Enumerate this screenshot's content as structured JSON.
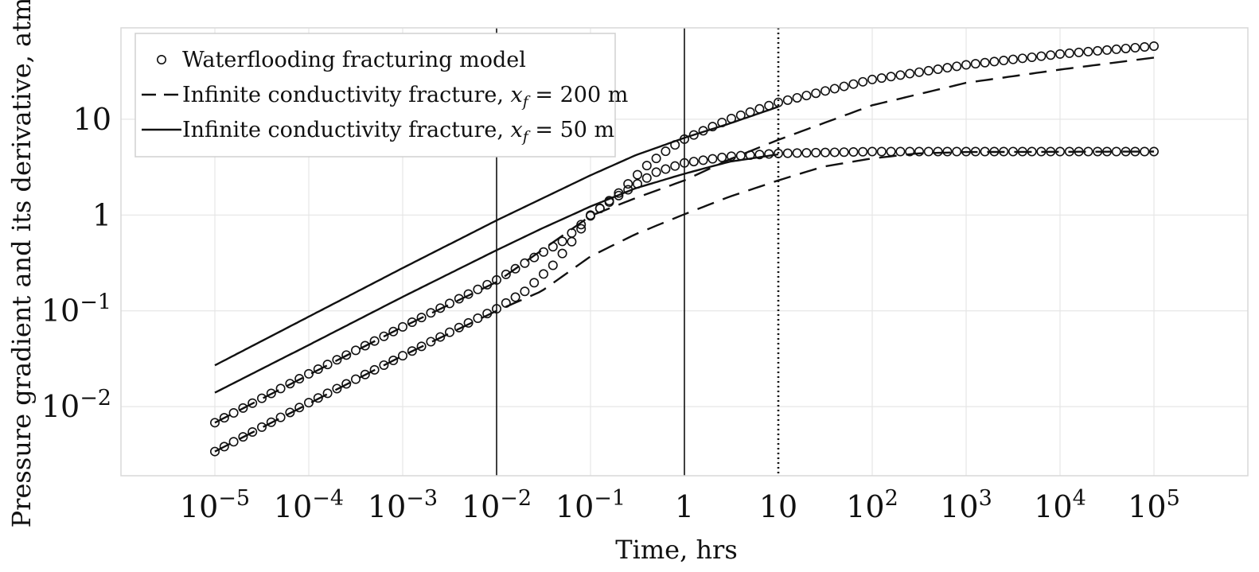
{
  "chart_data": {
    "type": "line",
    "title": "",
    "xlabel": "Time, hrs",
    "ylabel": "Pressure gradient and its derivative, atm",
    "xscale": "log",
    "yscale": "log",
    "xlim": [
      1e-06,
      1000000.0
    ],
    "ylim": [
      0.0019,
      90
    ],
    "grid": true,
    "legend_position": "top-left",
    "x_ticks": [
      {
        "value": 1e-05,
        "base": "10",
        "exp": "−5"
      },
      {
        "value": 0.0001,
        "base": "10",
        "exp": "−4"
      },
      {
        "value": 0.001,
        "base": "10",
        "exp": "−3"
      },
      {
        "value": 0.01,
        "base": "10",
        "exp": "−2"
      },
      {
        "value": 0.1,
        "base": "10",
        "exp": "−1"
      },
      {
        "value": 1,
        "base": "1",
        "exp": ""
      },
      {
        "value": 10,
        "base": "10",
        "exp": ""
      },
      {
        "value": 100,
        "base": "10",
        "exp": "2"
      },
      {
        "value": 1000,
        "base": "10",
        "exp": "3"
      },
      {
        "value": 10000,
        "base": "10",
        "exp": "4"
      },
      {
        "value": 100000,
        "base": "10",
        "exp": "5"
      }
    ],
    "y_ticks": [
      {
        "value": 0.01,
        "base": "10",
        "exp": "−2"
      },
      {
        "value": 0.1,
        "base": "10",
        "exp": "−1"
      },
      {
        "value": 1,
        "base": "1",
        "exp": ""
      },
      {
        "value": 10,
        "base": "10",
        "exp": ""
      }
    ],
    "vertical_lines": [
      {
        "x": 0.01,
        "style": "solid"
      },
      {
        "x": 1,
        "style": "solid"
      },
      {
        "x": 10,
        "style": "dotted"
      }
    ],
    "legend": [
      {
        "marker": "circle",
        "label": "Waterflooding fracturing model"
      },
      {
        "marker": "dash",
        "label": "Infinite conductivity fracture, ",
        "math_var": "x",
        "math_sub": "f",
        "math_rest": " = 200 m"
      },
      {
        "marker": "solid",
        "label": "Infinite conductivity fracture, ",
        "math_var": "x",
        "math_sub": "f",
        "math_rest": " = 50 m"
      }
    ],
    "series": [
      {
        "name": "Waterflooding fracturing model (pressure)",
        "style": "markers",
        "points": [
          [
            1e-05,
            0.0068
          ],
          [
            0.0001,
            0.022
          ],
          [
            0.001,
            0.068
          ],
          [
            0.01,
            0.21
          ],
          [
            0.03,
            0.4
          ],
          [
            0.05,
            0.53
          ],
          [
            0.08,
            0.8
          ],
          [
            0.1,
            0.98
          ],
          [
            0.2,
            1.7
          ],
          [
            0.4,
            3.3
          ],
          [
            0.7,
            5.0
          ],
          [
            1,
            6.2
          ],
          [
            3,
            10
          ],
          [
            10,
            15
          ],
          [
            100,
            26
          ],
          [
            1000,
            37
          ],
          [
            10000,
            48
          ],
          [
            100000,
            58
          ]
        ]
      },
      {
        "name": "Waterflooding fracturing model (derivative)",
        "style": "markers",
        "points": [
          [
            1e-05,
            0.0034
          ],
          [
            0.0001,
            0.011
          ],
          [
            0.001,
            0.034
          ],
          [
            0.01,
            0.105
          ],
          [
            0.02,
            0.16
          ],
          [
            0.04,
            0.3
          ],
          [
            0.07,
            0.6
          ],
          [
            0.1,
            1.0
          ],
          [
            0.2,
            1.6
          ],
          [
            0.5,
            2.8
          ],
          [
            1,
            3.5
          ],
          [
            3,
            4.1
          ],
          [
            10,
            4.4
          ],
          [
            100,
            4.6
          ],
          [
            100000,
            4.6
          ]
        ]
      },
      {
        "name": "Infinite conductivity fracture, xf = 200 m (pressure)",
        "style": "dashed",
        "points": [
          [
            1e-05,
            0.0068
          ],
          [
            0.001,
            0.068
          ],
          [
            0.01,
            0.2
          ],
          [
            0.1,
            0.98
          ],
          [
            0.3,
            1.5
          ],
          [
            1,
            2.3
          ],
          [
            3,
            3.8
          ],
          [
            10,
            6.1
          ],
          [
            100,
            14
          ],
          [
            1000,
            24
          ],
          [
            10000,
            33
          ],
          [
            100000,
            44
          ]
        ]
      },
      {
        "name": "Infinite conductivity fracture, xf = 200 m (derivative)",
        "style": "dashed",
        "points": [
          [
            1e-05,
            0.0034
          ],
          [
            0.001,
            0.034
          ],
          [
            0.01,
            0.1
          ],
          [
            0.03,
            0.16
          ],
          [
            0.1,
            0.37
          ],
          [
            0.3,
            0.63
          ],
          [
            1,
            1.02
          ],
          [
            3,
            1.55
          ],
          [
            10,
            2.3
          ],
          [
            30,
            3.2
          ],
          [
            100,
            3.9
          ],
          [
            300,
            4.4
          ],
          [
            1000,
            4.55
          ],
          [
            100000,
            4.6
          ]
        ]
      },
      {
        "name": "Infinite conductivity fracture, xf = 50 m (pressure)",
        "style": "solid",
        "points": [
          [
            1e-05,
            0.027
          ],
          [
            0.0001,
            0.087
          ],
          [
            0.001,
            0.28
          ],
          [
            0.01,
            0.88
          ],
          [
            0.1,
            2.6
          ],
          [
            0.3,
            4.2
          ],
          [
            1,
            6.4
          ],
          [
            3,
            9.0
          ],
          [
            10,
            13.5
          ]
        ]
      },
      {
        "name": "Infinite conductivity fracture, xf = 50 m (derivative)",
        "style": "solid",
        "points": [
          [
            1e-05,
            0.014
          ],
          [
            0.0001,
            0.044
          ],
          [
            0.001,
            0.14
          ],
          [
            0.01,
            0.43
          ],
          [
            0.03,
            0.72
          ],
          [
            0.1,
            1.23
          ],
          [
            0.3,
            1.9
          ],
          [
            1,
            2.7
          ],
          [
            3,
            3.6
          ],
          [
            10,
            4.3
          ]
        ]
      }
    ]
  }
}
